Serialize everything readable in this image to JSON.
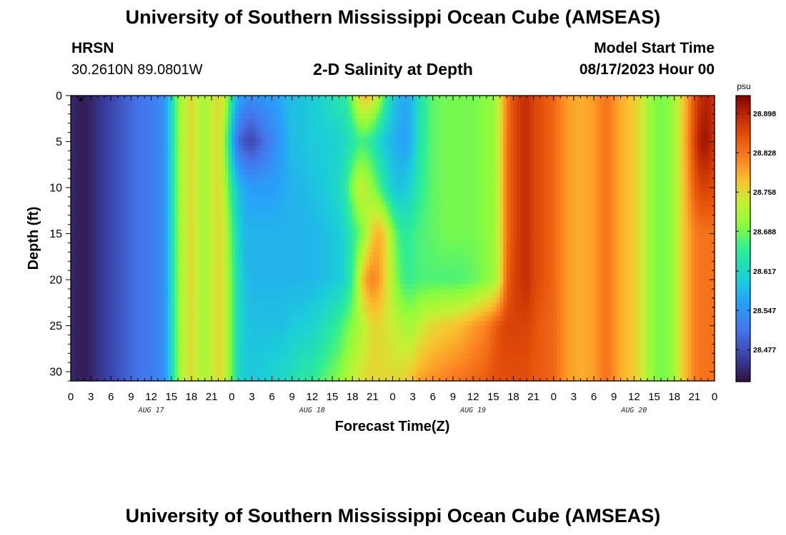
{
  "header": {
    "title": "University of Southern Mississippi Ocean Cube (AMSEAS)",
    "station_name": "HRSN",
    "station_coords": "30.2610N  89.0801W",
    "plot_title": "2-D Salinity at Depth",
    "model_start_label": "Model Start Time",
    "model_start_value": "08/17/2023 Hour 00"
  },
  "footer": {
    "title": "University of Southern Mississippi Ocean Cube (AMSEAS)"
  },
  "chart_data": {
    "type": "heatmap",
    "title": "2-D Salinity at Depth",
    "xlabel": "Forecast Time(Z)",
    "ylabel": "Depth (ft)",
    "x_tick_labels": [
      "0",
      "3",
      "6",
      "9",
      "12",
      "15",
      "18",
      "21",
      "0",
      "3",
      "6",
      "9",
      "12",
      "15",
      "18",
      "21",
      "0",
      "3",
      "6",
      "9",
      "12",
      "15",
      "18",
      "21",
      "0",
      "3",
      "6",
      "9",
      "12",
      "15",
      "18",
      "21",
      "0"
    ],
    "day_labels": [
      {
        "label": "AUG 17",
        "hour": 12
      },
      {
        "label": "AUG 18",
        "hour": 36
      },
      {
        "label": "AUG 19",
        "hour": 60
      },
      {
        "label": "AUG 20",
        "hour": 84
      }
    ],
    "xlim_hours": [
      0,
      96
    ],
    "y_ticks": [
      0,
      5,
      10,
      15,
      20,
      25,
      30
    ],
    "ylim": [
      0,
      31
    ],
    "y_inverted": true,
    "colorbar": {
      "unit": "psu",
      "ticks": [
        28.477,
        28.547,
        28.617,
        28.688,
        28.758,
        28.828,
        28.898
      ],
      "range": [
        28.42,
        28.93
      ]
    },
    "profile_hours": [
      0,
      2,
      4,
      6,
      8,
      10,
      12,
      13,
      14,
      15,
      16,
      17,
      18,
      19,
      20,
      21,
      22,
      23,
      24,
      25,
      26,
      27,
      28,
      30,
      32,
      33,
      34,
      36,
      38,
      40,
      41,
      42,
      43,
      44,
      45,
      46,
      47,
      48,
      49,
      50,
      51,
      52,
      54,
      56,
      58,
      60,
      62,
      63,
      64,
      65,
      66,
      67,
      68,
      69,
      70,
      72,
      73,
      74,
      76,
      78,
      79,
      80,
      81,
      82,
      83,
      84,
      85,
      86,
      87,
      88,
      89,
      90,
      91,
      92,
      93,
      94,
      95,
      96
    ],
    "depths_ft": [
      0,
      5,
      10,
      15,
      20,
      25,
      31
    ],
    "salinity_psu": [
      [
        28.44,
        28.43,
        28.45,
        28.47,
        28.49,
        28.51,
        28.52,
        28.53,
        28.55,
        28.62,
        28.7,
        28.74,
        28.76,
        28.73,
        28.72,
        28.74,
        28.76,
        28.74,
        28.63,
        28.57,
        28.55,
        28.54,
        28.55,
        28.56,
        28.58,
        28.59,
        28.59,
        28.6,
        28.62,
        28.64,
        28.65,
        28.7,
        28.76,
        28.78,
        28.76,
        28.72,
        28.65,
        28.6,
        28.58,
        28.57,
        28.59,
        28.63,
        28.68,
        28.69,
        28.69,
        28.69,
        28.7,
        28.71,
        28.75,
        28.82,
        28.86,
        28.88,
        28.89,
        28.87,
        28.86,
        28.84,
        28.82,
        28.8,
        28.79,
        28.8,
        28.82,
        28.83,
        28.81,
        28.79,
        28.78,
        28.77,
        28.75,
        28.72,
        28.7,
        28.69,
        28.7,
        28.72,
        28.76,
        28.8,
        28.86,
        28.89,
        28.9,
        28.88
      ],
      [
        28.44,
        28.43,
        28.45,
        28.47,
        28.49,
        28.51,
        28.52,
        28.53,
        28.55,
        28.62,
        28.7,
        28.74,
        28.76,
        28.73,
        28.72,
        28.74,
        28.76,
        28.7,
        28.58,
        28.5,
        28.48,
        28.47,
        28.49,
        28.53,
        28.57,
        28.59,
        28.59,
        28.6,
        28.6,
        28.61,
        28.62,
        28.64,
        28.66,
        28.66,
        28.64,
        28.61,
        28.59,
        28.58,
        28.57,
        28.56,
        28.59,
        28.64,
        28.68,
        28.69,
        28.69,
        28.69,
        28.7,
        28.71,
        28.75,
        28.83,
        28.86,
        28.88,
        28.89,
        28.87,
        28.86,
        28.84,
        28.82,
        28.8,
        28.79,
        28.8,
        28.82,
        28.83,
        28.81,
        28.79,
        28.78,
        28.77,
        28.75,
        28.72,
        28.7,
        28.69,
        28.7,
        28.72,
        28.76,
        28.81,
        28.87,
        28.91,
        28.91,
        28.88
      ],
      [
        28.44,
        28.43,
        28.45,
        28.47,
        28.49,
        28.51,
        28.52,
        28.53,
        28.55,
        28.62,
        28.7,
        28.74,
        28.76,
        28.73,
        28.72,
        28.74,
        28.76,
        28.72,
        28.64,
        28.59,
        28.57,
        28.56,
        28.56,
        28.56,
        28.57,
        28.58,
        28.58,
        28.59,
        28.6,
        28.62,
        28.65,
        28.7,
        28.74,
        28.73,
        28.7,
        28.67,
        28.63,
        28.6,
        28.59,
        28.6,
        28.62,
        28.65,
        28.68,
        28.69,
        28.69,
        28.69,
        28.7,
        28.71,
        28.75,
        28.83,
        28.86,
        28.88,
        28.89,
        28.87,
        28.86,
        28.84,
        28.82,
        28.8,
        28.79,
        28.8,
        28.82,
        28.83,
        28.81,
        28.79,
        28.78,
        28.77,
        28.75,
        28.72,
        28.7,
        28.69,
        28.7,
        28.72,
        28.76,
        28.8,
        28.85,
        28.87,
        28.87,
        28.86
      ],
      [
        28.44,
        28.43,
        28.45,
        28.47,
        28.49,
        28.51,
        28.52,
        28.53,
        28.55,
        28.62,
        28.7,
        28.74,
        28.76,
        28.73,
        28.72,
        28.74,
        28.76,
        28.74,
        28.67,
        28.61,
        28.58,
        28.58,
        28.58,
        28.58,
        28.58,
        28.58,
        28.58,
        28.58,
        28.59,
        28.6,
        28.62,
        28.65,
        28.68,
        28.72,
        28.77,
        28.79,
        28.76,
        28.7,
        28.66,
        28.65,
        28.66,
        28.67,
        28.68,
        28.69,
        28.69,
        28.69,
        28.7,
        28.71,
        28.75,
        28.83,
        28.86,
        28.88,
        28.89,
        28.87,
        28.86,
        28.84,
        28.82,
        28.8,
        28.79,
        28.8,
        28.82,
        28.83,
        28.81,
        28.79,
        28.78,
        28.77,
        28.75,
        28.72,
        28.7,
        28.69,
        28.7,
        28.72,
        28.76,
        28.79,
        28.82,
        28.83,
        28.83,
        28.83
      ],
      [
        28.44,
        28.43,
        28.45,
        28.47,
        28.49,
        28.51,
        28.52,
        28.53,
        28.55,
        28.62,
        28.7,
        28.74,
        28.76,
        28.73,
        28.72,
        28.74,
        28.76,
        28.74,
        28.68,
        28.62,
        28.59,
        28.58,
        28.58,
        28.58,
        28.58,
        28.58,
        28.58,
        28.58,
        28.59,
        28.6,
        28.62,
        28.66,
        28.74,
        28.8,
        28.82,
        28.8,
        28.76,
        28.72,
        28.68,
        28.66,
        28.66,
        28.67,
        28.67,
        28.67,
        28.67,
        28.68,
        28.7,
        28.71,
        28.75,
        28.84,
        28.87,
        28.88,
        28.89,
        28.87,
        28.86,
        28.84,
        28.82,
        28.8,
        28.79,
        28.8,
        28.82,
        28.83,
        28.81,
        28.79,
        28.78,
        28.77,
        28.75,
        28.72,
        28.7,
        28.69,
        28.7,
        28.72,
        28.76,
        28.79,
        28.82,
        28.83,
        28.83,
        28.83
      ],
      [
        28.44,
        28.43,
        28.45,
        28.47,
        28.49,
        28.51,
        28.52,
        28.53,
        28.55,
        28.62,
        28.7,
        28.74,
        28.76,
        28.73,
        28.72,
        28.74,
        28.76,
        28.74,
        28.68,
        28.62,
        28.6,
        28.59,
        28.59,
        28.59,
        28.59,
        28.6,
        28.6,
        28.61,
        28.63,
        28.66,
        28.68,
        28.7,
        28.72,
        28.74,
        28.76,
        28.76,
        28.75,
        28.74,
        28.73,
        28.72,
        28.72,
        28.74,
        28.76,
        28.77,
        28.78,
        28.8,
        28.82,
        28.84,
        28.86,
        28.87,
        28.87,
        28.87,
        28.87,
        28.86,
        28.85,
        28.84,
        28.82,
        28.8,
        28.79,
        28.8,
        28.82,
        28.83,
        28.81,
        28.79,
        28.78,
        28.77,
        28.75,
        28.72,
        28.7,
        28.69,
        28.7,
        28.72,
        28.76,
        28.79,
        28.82,
        28.83,
        28.83,
        28.83
      ],
      [
        28.44,
        28.43,
        28.45,
        28.47,
        28.49,
        28.51,
        28.52,
        28.53,
        28.55,
        28.62,
        28.7,
        28.74,
        28.76,
        28.73,
        28.72,
        28.74,
        28.76,
        28.74,
        28.68,
        28.62,
        28.6,
        28.6,
        28.6,
        28.61,
        28.62,
        28.63,
        28.64,
        28.65,
        28.68,
        28.7,
        28.72,
        28.74,
        28.75,
        28.76,
        28.76,
        28.76,
        28.76,
        28.76,
        28.76,
        28.77,
        28.78,
        28.8,
        28.81,
        28.82,
        28.83,
        28.84,
        28.85,
        28.86,
        28.86,
        28.86,
        28.86,
        28.86,
        28.86,
        28.85,
        28.85,
        28.84,
        28.82,
        28.8,
        28.79,
        28.8,
        28.82,
        28.83,
        28.81,
        28.79,
        28.78,
        28.77,
        28.75,
        28.72,
        28.7,
        28.69,
        28.7,
        28.72,
        28.76,
        28.79,
        28.82,
        28.83,
        28.83,
        28.83
      ]
    ],
    "marker": {
      "hour": 1.5,
      "depth_ft": 0.3
    }
  }
}
